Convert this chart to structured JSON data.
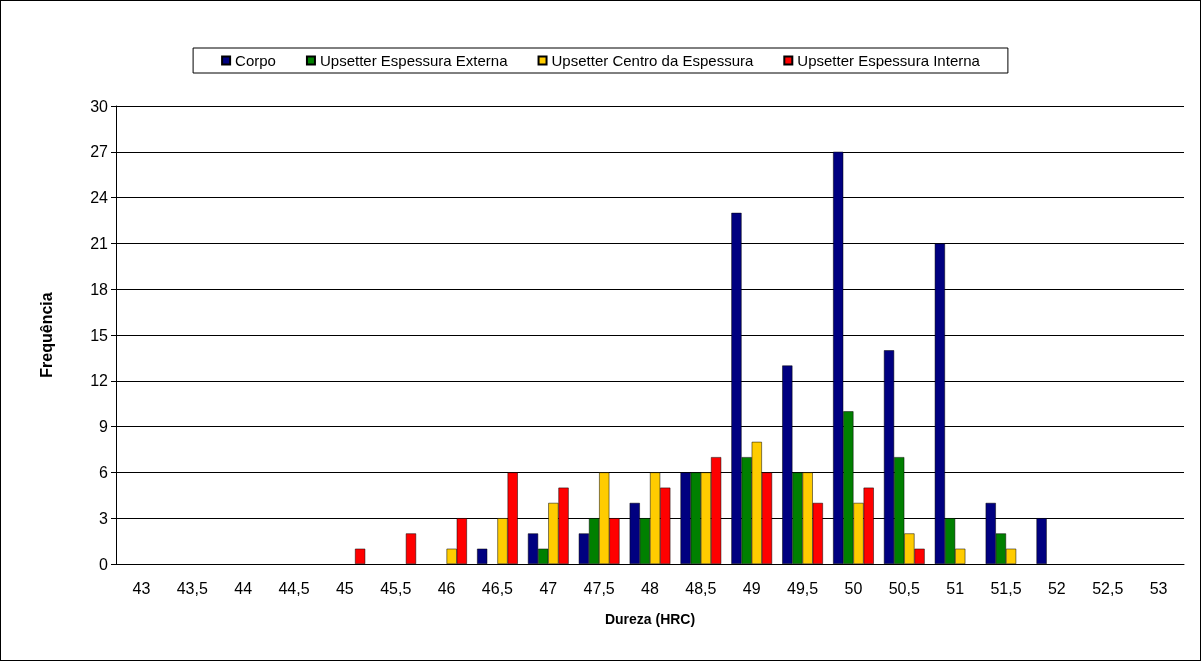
{
  "chart_data": {
    "type": "bar",
    "xlabel": "Dureza (HRC)",
    "ylabel": "Frequência",
    "categories": [
      "43",
      "43,5",
      "44",
      "44,5",
      "45",
      "45,5",
      "46",
      "46,5",
      "47",
      "47,5",
      "48",
      "48,5",
      "49",
      "49,5",
      "50",
      "50,5",
      "51",
      "51,5",
      "52",
      "52,5",
      "53"
    ],
    "series": [
      {
        "name": "Corpo",
        "color": "#000080",
        "values": [
          0,
          0,
          0,
          0,
          0,
          0,
          0,
          1,
          2,
          2,
          4,
          6,
          23,
          13,
          27,
          14,
          21,
          4,
          3,
          0,
          0
        ]
      },
      {
        "name": "Upsetter Espessura Externa",
        "color": "#008000",
        "values": [
          0,
          0,
          0,
          0,
          0,
          0,
          0,
          0,
          1,
          3,
          3,
          6,
          7,
          6,
          10,
          7,
          3,
          2,
          0,
          0,
          0
        ]
      },
      {
        "name": "Upsetter Centro da Espessura",
        "color": "#ffcc00",
        "values": [
          0,
          0,
          0,
          0,
          0,
          0,
          1,
          3,
          4,
          6,
          6,
          6,
          8,
          6,
          4,
          2,
          1,
          1,
          0,
          0,
          0
        ]
      },
      {
        "name": "Upsetter Espessura Interna",
        "color": "#ff0000",
        "values": [
          0,
          0,
          0,
          0,
          1,
          2,
          3,
          6,
          5,
          3,
          5,
          7,
          6,
          4,
          5,
          1,
          0,
          0,
          0,
          0,
          0
        ]
      }
    ],
    "ylim": [
      0,
      30
    ],
    "yticks": [
      0,
      3,
      6,
      9,
      12,
      15,
      18,
      21,
      24,
      27,
      30
    ],
    "grid": "y",
    "legend": "top"
  }
}
